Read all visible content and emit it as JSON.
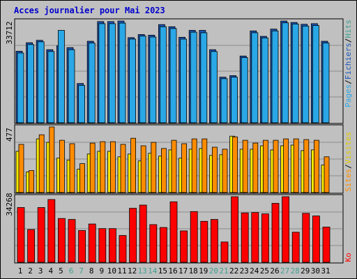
{
  "chart_data": [
    {
      "type": "bar",
      "title": "Acces journalier pour Mai 2023",
      "categories": [
        "1",
        "2",
        "3",
        "4",
        "5",
        "6",
        "7",
        "8",
        "9",
        "10",
        "11",
        "12",
        "13",
        "14",
        "15",
        "16",
        "17",
        "18",
        "19",
        "20",
        "21",
        "22",
        "23",
        "24",
        "25",
        "26",
        "27",
        "28",
        "29",
        "30",
        "31"
      ],
      "weekend_days": [
        "6",
        "7",
        "13",
        "14",
        "20",
        "21",
        "27",
        "28"
      ],
      "ymax_label": "33712",
      "ylim": [
        0,
        33712
      ],
      "series_labels": [
        "Pages",
        "Fichiers",
        "Hits"
      ],
      "colors": {
        "Pages": "#2aa7e6",
        "Fichiers": "#1a56b8",
        "Hits": "#3f9f8f"
      },
      "series": [
        {
          "name": "Fichiers",
          "values": [
            23700,
            26500,
            27300,
            24200,
            25500,
            24900,
            13000,
            27000,
            33500,
            33500,
            33700,
            28200,
            29200,
            29000,
            32500,
            31800,
            28300,
            30600,
            30600,
            24200,
            15100,
            15600,
            22100,
            30400,
            28600,
            31000,
            33700,
            33200,
            32600,
            32800,
            27000
          ]
        },
        {
          "name": "Pages",
          "values": [
            23100,
            25900,
            26800,
            23600,
            30600,
            24200,
            12400,
            26400,
            32800,
            32800,
            33000,
            27700,
            28700,
            28400,
            31800,
            31200,
            27700,
            30000,
            29800,
            23600,
            14600,
            15100,
            21600,
            29800,
            28100,
            30400,
            33100,
            32700,
            32000,
            32200,
            26400
          ]
        }
      ]
    },
    {
      "type": "bar",
      "ymax_label": "477",
      "ylim": [
        0,
        477
      ],
      "series_labels": [
        "Sites",
        "Visites"
      ],
      "colors": {
        "Sites": "#ff8c00",
        "Visites": "#f5e600"
      },
      "series": [
        {
          "name": "Visites",
          "values": [
            300,
            150,
            390,
            365,
            250,
            235,
            170,
            280,
            300,
            300,
            260,
            280,
            230,
            285,
            265,
            310,
            250,
            315,
            320,
            270,
            275,
            410,
            315,
            315,
            340,
            310,
            340,
            345,
            305,
            310,
            200
          ]
        },
        {
          "name": "Sites",
          "values": [
            350,
            160,
            420,
            477,
            380,
            355,
            210,
            360,
            370,
            370,
            350,
            395,
            340,
            365,
            320,
            380,
            355,
            390,
            390,
            330,
            315,
            405,
            380,
            360,
            380,
            380,
            390,
            390,
            385,
            380,
            260
          ]
        }
      ]
    },
    {
      "type": "bar",
      "ymax_label": "34268",
      "ylim": [
        0,
        34268
      ],
      "series_labels": [
        "Ko"
      ],
      "colors": {
        "Ko": "#ff0000"
      },
      "series": [
        {
          "name": "Ko",
          "values": [
            28600,
            17100,
            28600,
            32800,
            22900,
            22400,
            16600,
            20000,
            17600,
            17600,
            14000,
            28200,
            29900,
            19700,
            18200,
            31600,
            16400,
            26500,
            21400,
            22400,
            10600,
            34268,
            25800,
            26000,
            25300,
            30800,
            34268,
            15700,
            25600,
            24200,
            18400
          ]
        }
      ]
    }
  ],
  "separators": {
    "pages_fichiers": "/",
    "fichiers_hits": "/",
    "sites_visites": "/"
  }
}
